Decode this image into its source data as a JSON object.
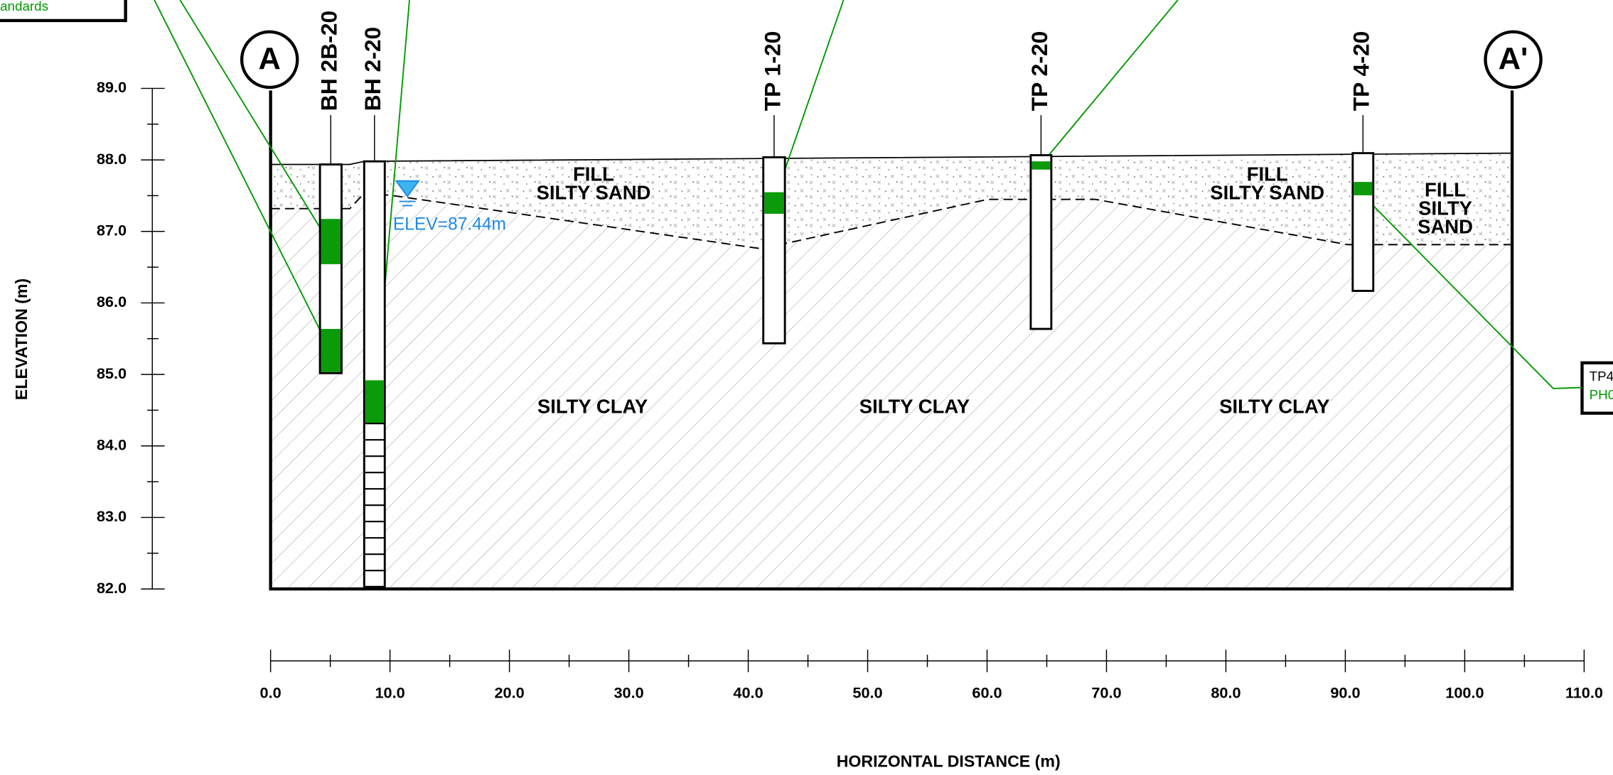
{
  "callouts": {
    "top_left": "andards",
    "right": [
      "TP4",
      "PH0"
    ]
  },
  "section_markers": [
    "A",
    "A'"
  ],
  "boreholes": [
    "BH 2B-20",
    "BH 2-20",
    "TP 1-20",
    "TP 2-20",
    "TP 4-20"
  ],
  "water_level": "ELEV=87.44m",
  "soil_labels": {
    "fill": [
      [
        "FILL",
        "SILTY SAND"
      ],
      [
        "FILL",
        "SILTY SAND"
      ],
      [
        "FILL",
        "SILTY",
        "SAND"
      ]
    ],
    "clay": [
      "SILTY CLAY",
      "SILTY CLAY",
      "SILTY CLAY"
    ]
  },
  "y_axis": {
    "title": "ELEVATION (m)",
    "ticks": [
      "89.0",
      "88.0",
      "87.0",
      "86.0",
      "85.0",
      "84.0",
      "83.0",
      "82.0"
    ]
  },
  "x_axis": {
    "title": "HORIZONTAL DISTANCE (m)",
    "ticks": [
      "0.0",
      "10.0",
      "20.0",
      "30.0",
      "40.0",
      "50.0",
      "60.0",
      "70.0",
      "80.0",
      "90.0",
      "100.0",
      "110.0"
    ]
  }
}
